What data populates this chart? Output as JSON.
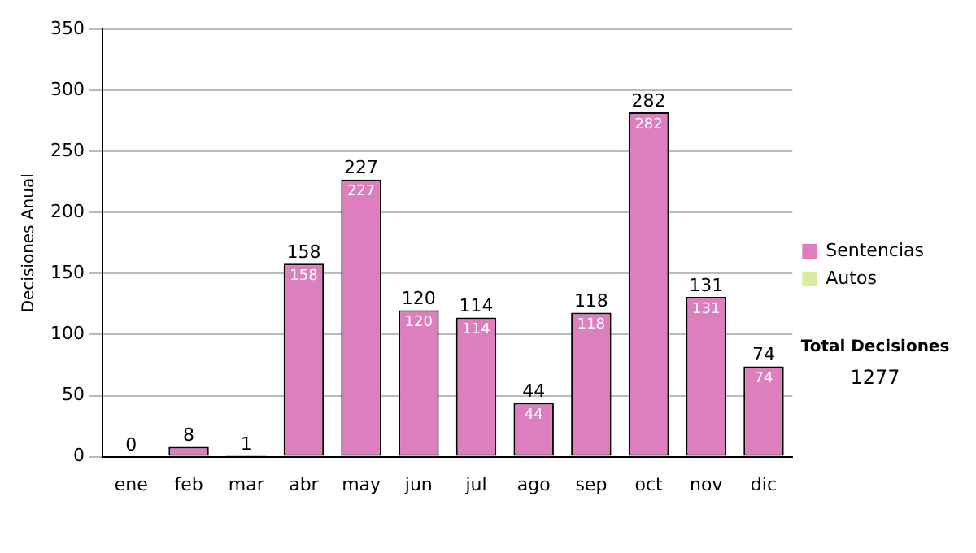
{
  "chart_data": {
    "type": "bar",
    "stacked": true,
    "ylabel": "Decisiones Anual",
    "categories": [
      "ene",
      "feb",
      "mar",
      "abr",
      "may",
      "jun",
      "jul",
      "ago",
      "sep",
      "oct",
      "nov",
      "dic"
    ],
    "series": [
      {
        "name": "Sentencias",
        "color": "#dd7fbf",
        "values": [
          0,
          8,
          1,
          158,
          227,
          120,
          114,
          44,
          118,
          282,
          131,
          74
        ],
        "value_labels": [
          null,
          null,
          null,
          "158",
          "227",
          "120",
          "114",
          "44",
          "118",
          "282",
          "131",
          "74"
        ]
      },
      {
        "name": "Autos",
        "color": "#d9ec9e",
        "values": [
          0,
          0,
          0,
          0,
          0,
          0,
          0,
          0,
          0,
          0,
          0,
          0
        ]
      }
    ],
    "totals": [
      "0",
      "8",
      "1",
      "158",
      "227",
      "120",
      "114",
      "44",
      "118",
      "282",
      "131",
      "74"
    ],
    "ylim": [
      0,
      350
    ],
    "yticks": [
      0,
      50,
      100,
      150,
      200,
      250,
      300,
      350
    ],
    "grid": "y",
    "legend": "right",
    "annotations": [
      "Total Decisiones",
      "1277"
    ]
  }
}
